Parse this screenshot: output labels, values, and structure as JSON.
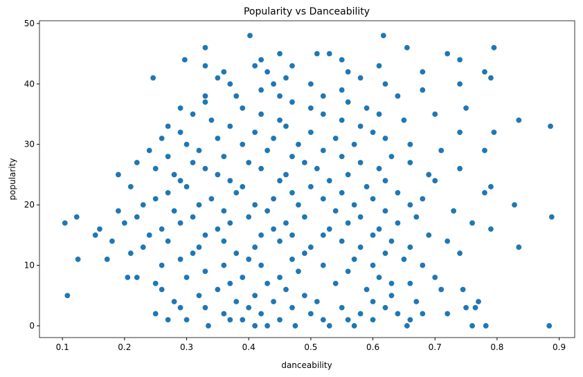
{
  "chart_data": {
    "type": "scatter",
    "title": "Popularity vs Danceability",
    "x_label": "danceability",
    "y_label": "popularity",
    "color": "#1f77b4",
    "grid": false,
    "xlim": [
      0.063,
      0.925
    ],
    "ylim": [
      -1.95,
      50.45
    ],
    "xticks": [
      0.1,
      0.2,
      0.3,
      0.4,
      0.5,
      0.6,
      0.7,
      0.8,
      0.9
    ],
    "yticks": [
      0,
      10,
      20,
      30,
      40,
      50
    ],
    "x": [
      0.335,
      0.41,
      0.43,
      0.475,
      0.53,
      0.57,
      0.655,
      0.76,
      0.782,
      0.884,
      0.3,
      0.37,
      0.39,
      0.45,
      0.52,
      0.56,
      0.6,
      0.66,
      0.27,
      0.25,
      0.36,
      0.42,
      0.5,
      0.58,
      0.64,
      0.68,
      0.72,
      0.29,
      0.33,
      0.4,
      0.47,
      0.55,
      0.62,
      0.75,
      0.765,
      0.28,
      0.38,
      0.44,
      0.51,
      0.6,
      0.67,
      0.77,
      0.108,
      0.32,
      0.41,
      0.49,
      0.63,
      0.26,
      0.35,
      0.46,
      0.59,
      0.71,
      0.745,
      0.25,
      0.37,
      0.43,
      0.54,
      0.63,
      0.66,
      0.205,
      0.22,
      0.3,
      0.39,
      0.45,
      0.61,
      0.7,
      0.33,
      0.48,
      0.56,
      0.26,
      0.36,
      0.42,
      0.52,
      0.6,
      0.68,
      0.125,
      0.172,
      0.29,
      0.4,
      0.47,
      0.57,
      0.65,
      0.21,
      0.31,
      0.38,
      0.49,
      0.62,
      0.74,
      0.23,
      0.32,
      0.41,
      0.5,
      0.58,
      0.66,
      0.835,
      0.18,
      0.27,
      0.36,
      0.45,
      0.55,
      0.63,
      0.72,
      0.153,
      0.24,
      0.33,
      0.42,
      0.47,
      0.52,
      0.6,
      0.69,
      0.16,
      0.26,
      0.35,
      0.44,
      0.53,
      0.61,
      0.79,
      0.104,
      0.2,
      0.29,
      0.37,
      0.46,
      0.56,
      0.64,
      0.76,
      0.123,
      0.22,
      0.31,
      0.4,
      0.49,
      0.58,
      0.67,
      0.888,
      0.19,
      0.28,
      0.36,
      0.43,
      0.54,
      0.62,
      0.73,
      0.23,
      0.32,
      0.41,
      0.48,
      0.57,
      0.66,
      0.828,
      0.25,
      0.34,
      0.44,
      0.52,
      0.6,
      0.68,
      0.27,
      0.38,
      0.47,
      0.55,
      0.64,
      0.78,
      0.21,
      0.3,
      0.39,
      0.5,
      0.59,
      0.79,
      0.29,
      0.37,
      0.45,
      0.53,
      0.62,
      0.7,
      0.19,
      0.28,
      0.35,
      0.46,
      0.56,
      0.69,
      0.25,
      0.33,
      0.42,
      0.51,
      0.61,
      0.74,
      0.22,
      0.31,
      0.4,
      0.49,
      0.58,
      0.66,
      0.27,
      0.36,
      0.47,
      0.55,
      0.63,
      0.24,
      0.32,
      0.43,
      0.52,
      0.71,
      0.78,
      0.3,
      0.39,
      0.48,
      0.57,
      0.66,
      0.26,
      0.35,
      0.44,
      0.54,
      0.62,
      0.29,
      0.41,
      0.5,
      0.6,
      0.74,
      0.795,
      0.27,
      0.37,
      0.46,
      0.58,
      0.886,
      0.34,
      0.45,
      0.55,
      0.65,
      0.835,
      0.31,
      0.42,
      0.52,
      0.61,
      0.7,
      0.29,
      0.39,
      0.5,
      0.59,
      0.75,
      0.33,
      0.47,
      0.56,
      0.33,
      0.38,
      0.45,
      0.52,
      0.64,
      0.42,
      0.55,
      0.68,
      0.37,
      0.44,
      0.5,
      0.62,
      0.74,
      0.246,
      0.35,
      0.46,
      0.58,
      0.79,
      0.36,
      0.43,
      0.56,
      0.68,
      0.78,
      0.33,
      0.41,
      0.47,
      0.61,
      0.297,
      0.42,
      0.55,
      0.74,
      0.45,
      0.51,
      0.53,
      0.72,
      0.33,
      0.655,
      0.795,
      0.402,
      0.617
    ],
    "values": [
      0,
      0,
      0,
      0,
      0,
      0,
      0,
      0,
      0,
      0,
      1,
      1,
      1,
      1,
      1,
      1,
      1,
      1,
      1,
      2,
      2,
      2,
      2,
      2,
      2,
      2,
      2,
      3,
      3,
      3,
      3,
      3,
      3,
      3,
      3,
      4,
      4,
      4,
      4,
      4,
      4,
      4,
      5,
      5,
      5,
      5,
      5,
      6,
      6,
      6,
      6,
      6,
      6,
      7,
      7,
      7,
      7,
      7,
      7,
      8,
      8,
      8,
      8,
      8,
      8,
      8,
      9,
      9,
      9,
      10,
      10,
      10,
      10,
      10,
      10,
      11,
      11,
      11,
      11,
      11,
      11,
      11,
      12,
      12,
      12,
      12,
      12,
      12,
      13,
      13,
      13,
      13,
      13,
      13,
      13,
      14,
      14,
      14,
      14,
      14,
      14,
      14,
      15,
      15,
      15,
      15,
      15,
      15,
      15,
      15,
      16,
      16,
      16,
      16,
      16,
      16,
      16,
      17,
      17,
      17,
      17,
      17,
      17,
      17,
      17,
      18,
      18,
      18,
      18,
      18,
      18,
      18,
      18,
      19,
      19,
      19,
      19,
      19,
      19,
      19,
      20,
      20,
      20,
      20,
      20,
      20,
      20,
      21,
      21,
      21,
      21,
      21,
      21,
      22,
      22,
      22,
      22,
      22,
      22,
      23,
      23,
      23,
      23,
      23,
      23,
      24,
      24,
      24,
      24,
      24,
      24,
      25,
      25,
      25,
      25,
      25,
      25,
      26,
      26,
      26,
      26,
      26,
      26,
      27,
      27,
      27,
      27,
      27,
      27,
      28,
      28,
      28,
      28,
      28,
      29,
      29,
      29,
      29,
      29,
      29,
      30,
      30,
      30,
      30,
      30,
      31,
      31,
      31,
      31,
      31,
      32,
      32,
      32,
      32,
      32,
      32,
      33,
      33,
      33,
      33,
      33,
      34,
      34,
      34,
      34,
      34,
      35,
      35,
      35,
      35,
      35,
      36,
      36,
      36,
      36,
      36,
      37,
      37,
      37,
      38,
      38,
      38,
      38,
      38,
      39,
      39,
      39,
      40,
      40,
      40,
      40,
      40,
      41,
      41,
      41,
      41,
      41,
      42,
      42,
      42,
      42,
      42,
      43,
      43,
      43,
      43,
      44,
      44,
      44,
      44,
      45,
      45,
      45,
      45,
      46,
      46,
      46,
      48,
      48
    ]
  }
}
